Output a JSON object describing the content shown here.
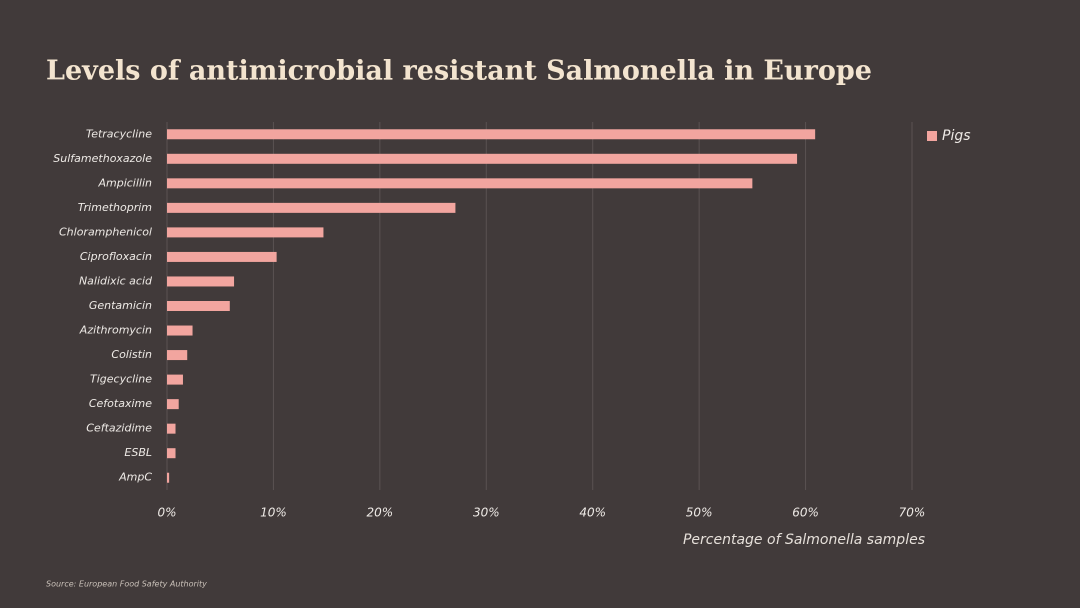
{
  "chart_data": {
    "type": "barh",
    "title": "Levels of antimicrobial resistant Salmonella in Europe",
    "x_label": "Percentage of Salmonella samples",
    "source": "Source: European Food Safety Authority",
    "categories": [
      "Tetracycline",
      "Sulfamethoxazole",
      "Ampicillin",
      "Trimethoprim",
      "Chloramphenicol",
      "Ciprofloxacin",
      "Nalidixic acid",
      "Gentamicin",
      "Azithromycin",
      "Colistin",
      "Tigecycline",
      "Cefotaxime",
      "Ceftazidime",
      "ESBL",
      "AmpC"
    ],
    "series": [
      {
        "name": "Pigs",
        "color": "#f2a59f",
        "values": [
          60.9,
          59.2,
          55.0,
          27.1,
          14.7,
          10.3,
          6.3,
          5.9,
          2.4,
          1.9,
          1.5,
          1.1,
          0.8,
          0.8,
          0.2
        ]
      }
    ],
    "xlim": [
      0,
      70
    ],
    "xticks": [
      {
        "value": 0,
        "label": "0%"
      },
      {
        "value": 10,
        "label": "10%"
      },
      {
        "value": 20,
        "label": "20%"
      },
      {
        "value": 30,
        "label": "30%"
      },
      {
        "value": 40,
        "label": "40%"
      },
      {
        "value": 50,
        "label": "50%"
      },
      {
        "value": 60,
        "label": "60%"
      },
      {
        "value": 70,
        "label": "70%"
      }
    ],
    "grid": true,
    "legend": "top-right"
  }
}
